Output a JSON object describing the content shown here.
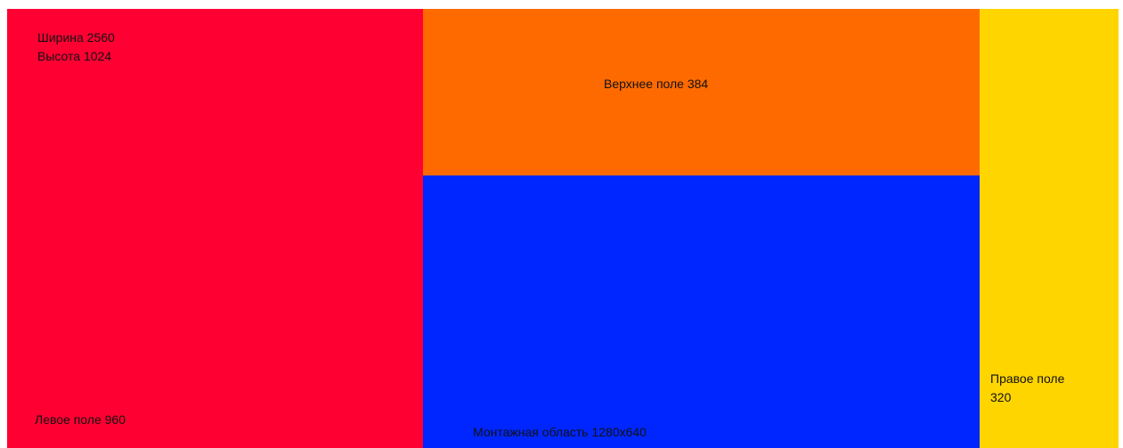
{
  "colors": {
    "left_field": "#ff0033",
    "top_field": "#ff6a00",
    "work_area": "#0026ff",
    "right_field": "#ffd500"
  },
  "canvas": {
    "width_label": "Ширина 2560",
    "height_label": "Высота 1024"
  },
  "regions": {
    "left_field": {
      "label": "Левое поле 960"
    },
    "top_field": {
      "label": "Верхнее поле 384"
    },
    "work_area": {
      "label": "Монтажная область 1280x640"
    },
    "right_field": {
      "label_line1": "Правое поле",
      "label_line2": "320"
    }
  }
}
